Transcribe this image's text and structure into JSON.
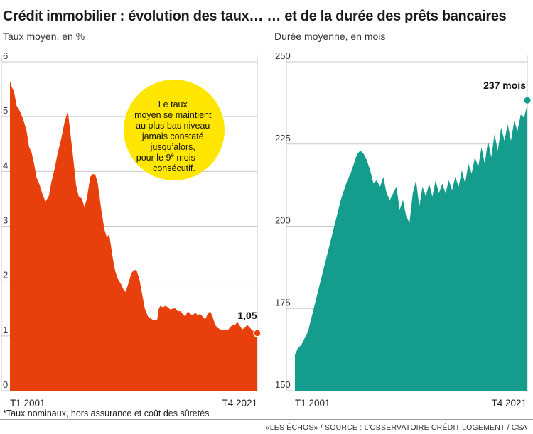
{
  "title": "Crédit immobilier : évolution des taux… … et de la durée des prêts bancaires",
  "footnote": "*Taux nominaux, hors assurance et coût des sûretés",
  "source": "«LES ÉCHOS» / SOURCE : L’OBSERVATOIRE CRÉDIT LOGEMENT / CSA",
  "colors": {
    "rate_fill": "#e8400c",
    "duration_fill": "#149c8c",
    "callout": "#ffe600",
    "grid": "#c8c8c8"
  },
  "chart_data": [
    {
      "type": "area",
      "ylabel": "Taux moyen, en %",
      "ylim": [
        0,
        6
      ],
      "yticks": [
        "0",
        "1",
        "2",
        "3",
        "4",
        "5",
        "6"
      ],
      "xlabels": [
        "T1 2001",
        "T4 2021"
      ],
      "grid": true,
      "end_label": "1,05",
      "annotation": [
        "Le taux",
        "moyen se maintient",
        "au plus bas niveau",
        "jamais constaté",
        "jusqu’alors,",
        "pour le 9",
        "e",
        " mois",
        "consécutif."
      ],
      "points": [
        [
          2001.0,
          5.65
        ],
        [
          2001.2,
          5.55
        ],
        [
          2001.5,
          5.45
        ],
        [
          2001.8,
          5.2
        ],
        [
          2002.2,
          5.1
        ],
        [
          2002.6,
          4.95
        ],
        [
          2003.0,
          4.75
        ],
        [
          2003.3,
          4.45
        ],
        [
          2003.6,
          4.35
        ],
        [
          2003.9,
          4.15
        ],
        [
          2004.2,
          3.9
        ],
        [
          2004.6,
          3.75
        ],
        [
          2004.9,
          3.6
        ],
        [
          2005.3,
          3.45
        ],
        [
          2005.7,
          3.55
        ],
        [
          2006.0,
          3.8
        ],
        [
          2006.4,
          4.05
        ],
        [
          2006.8,
          4.35
        ],
        [
          2007.2,
          4.6
        ],
        [
          2007.6,
          4.9
        ],
        [
          2008.0,
          5.1
        ],
        [
          2008.3,
          4.7
        ],
        [
          2008.6,
          4.3
        ],
        [
          2009.0,
          3.75
        ],
        [
          2009.3,
          3.55
        ],
        [
          2009.7,
          3.5
        ],
        [
          2010.0,
          3.35
        ],
        [
          2010.3,
          3.5
        ],
        [
          2010.7,
          3.9
        ],
        [
          2011.0,
          3.95
        ],
        [
          2011.3,
          3.95
        ],
        [
          2011.6,
          3.8
        ],
        [
          2012.0,
          3.35
        ],
        [
          2012.4,
          2.95
        ],
        [
          2012.7,
          2.8
        ],
        [
          2013.0,
          2.85
        ],
        [
          2013.4,
          2.45
        ],
        [
          2013.7,
          2.2
        ],
        [
          2014.0,
          2.05
        ],
        [
          2014.4,
          1.95
        ],
        [
          2014.7,
          1.85
        ],
        [
          2015.0,
          1.8
        ],
        [
          2015.3,
          1.95
        ],
        [
          2015.7,
          2.15
        ],
        [
          2016.0,
          2.2
        ],
        [
          2016.3,
          2.2
        ],
        [
          2016.7,
          2.0
        ],
        [
          2017.0,
          1.75
        ],
        [
          2017.3,
          1.5
        ],
        [
          2017.7,
          1.35
        ],
        [
          2018.0,
          1.32
        ],
        [
          2018.4,
          1.28
        ],
        [
          2018.8,
          1.3
        ],
        [
          2019.0,
          1.5
        ],
        [
          2019.2,
          1.55
        ],
        [
          2019.5,
          1.52
        ],
        [
          2019.8,
          1.55
        ],
        [
          2020.1,
          1.52
        ],
        [
          2020.4,
          1.48
        ],
        [
          2020.7,
          1.5
        ],
        [
          2021.0,
          1.5
        ],
        [
          2021.3,
          1.45
        ],
        [
          2021.6,
          1.45
        ],
        [
          2021.9,
          1.4
        ],
        [
          2022.2,
          1.35
        ],
        [
          2022.5,
          1.45
        ],
        [
          2022.8,
          1.4
        ],
        [
          2023.1,
          1.38
        ],
        [
          2023.4,
          1.42
        ],
        [
          2023.7,
          1.38
        ],
        [
          2024.0,
          1.4
        ],
        [
          2024.3,
          1.35
        ],
        [
          2024.6,
          1.3
        ],
        [
          2024.9,
          1.4
        ],
        [
          2025.2,
          1.45
        ],
        [
          2025.5,
          1.35
        ],
        [
          2025.8,
          1.2
        ],
        [
          2026.1,
          1.15
        ],
        [
          2026.4,
          1.12
        ],
        [
          2026.7,
          1.1
        ],
        [
          2027.0,
          1.12
        ],
        [
          2027.3,
          1.1
        ],
        [
          2027.6,
          1.15
        ],
        [
          2027.9,
          1.2
        ],
        [
          2028.2,
          1.2
        ],
        [
          2028.5,
          1.25
        ],
        [
          2028.8,
          1.18
        ],
        [
          2029.1,
          1.12
        ],
        [
          2029.4,
          1.15
        ],
        [
          2029.7,
          1.2
        ],
        [
          2030.0,
          1.15
        ],
        [
          2030.3,
          1.1
        ],
        [
          2030.6,
          1.08
        ],
        [
          2030.9,
          1.05
        ]
      ]
    },
    {
      "type": "area",
      "ylabel": "Durée moyenne, en mois",
      "ylim": [
        150,
        250
      ],
      "yticks": [
        "150",
        "175",
        "200",
        "225",
        "250"
      ],
      "xlabels": [
        "T1 2001",
        "T4 2021"
      ],
      "grid": true,
      "end_label": "237 mois",
      "points": [
        [
          0,
          161
        ],
        [
          0.3,
          163
        ],
        [
          0.6,
          164
        ],
        [
          0.9,
          166
        ],
        [
          1.2,
          168
        ],
        [
          1.5,
          172
        ],
        [
          1.8,
          176
        ],
        [
          2.1,
          180
        ],
        [
          2.4,
          184
        ],
        [
          2.7,
          188
        ],
        [
          3.0,
          192
        ],
        [
          3.3,
          196
        ],
        [
          3.6,
          200
        ],
        [
          3.9,
          204
        ],
        [
          4.2,
          208
        ],
        [
          4.5,
          211
        ],
        [
          4.8,
          214
        ],
        [
          5.1,
          216
        ],
        [
          5.4,
          219
        ],
        [
          5.7,
          222
        ],
        [
          6.0,
          223
        ],
        [
          6.3,
          222
        ],
        [
          6.6,
          220
        ],
        [
          6.9,
          217
        ],
        [
          7.2,
          213
        ],
        [
          7.5,
          214
        ],
        [
          7.8,
          212
        ],
        [
          8.1,
          215
        ],
        [
          8.4,
          210
        ],
        [
          8.7,
          208
        ],
        [
          9.0,
          210
        ],
        [
          9.3,
          212
        ],
        [
          9.6,
          205
        ],
        [
          9.9,
          208
        ],
        [
          10.2,
          203
        ],
        [
          10.5,
          201
        ],
        [
          10.8,
          210
        ],
        [
          11.1,
          214
        ],
        [
          11.4,
          206
        ],
        [
          11.7,
          212
        ],
        [
          12.0,
          209
        ],
        [
          12.3,
          213
        ],
        [
          12.6,
          209
        ],
        [
          12.9,
          214
        ],
        [
          13.2,
          210
        ],
        [
          13.5,
          213
        ],
        [
          13.8,
          210
        ],
        [
          14.1,
          214
        ],
        [
          14.4,
          211
        ],
        [
          14.7,
          215
        ],
        [
          15.0,
          212
        ],
        [
          15.3,
          217
        ],
        [
          15.6,
          213
        ],
        [
          15.9,
          219
        ],
        [
          16.2,
          216
        ],
        [
          16.5,
          221
        ],
        [
          16.8,
          218
        ],
        [
          17.1,
          224
        ],
        [
          17.4,
          219
        ],
        [
          17.7,
          226
        ],
        [
          18.0,
          221
        ],
        [
          18.3,
          228
        ],
        [
          18.6,
          223
        ],
        [
          18.9,
          230
        ],
        [
          19.2,
          226
        ],
        [
          19.5,
          231
        ],
        [
          19.8,
          226
        ],
        [
          20.1,
          232
        ],
        [
          20.4,
          229
        ],
        [
          20.7,
          234
        ],
        [
          21.0,
          233
        ],
        [
          21.3,
          237
        ]
      ]
    }
  ]
}
